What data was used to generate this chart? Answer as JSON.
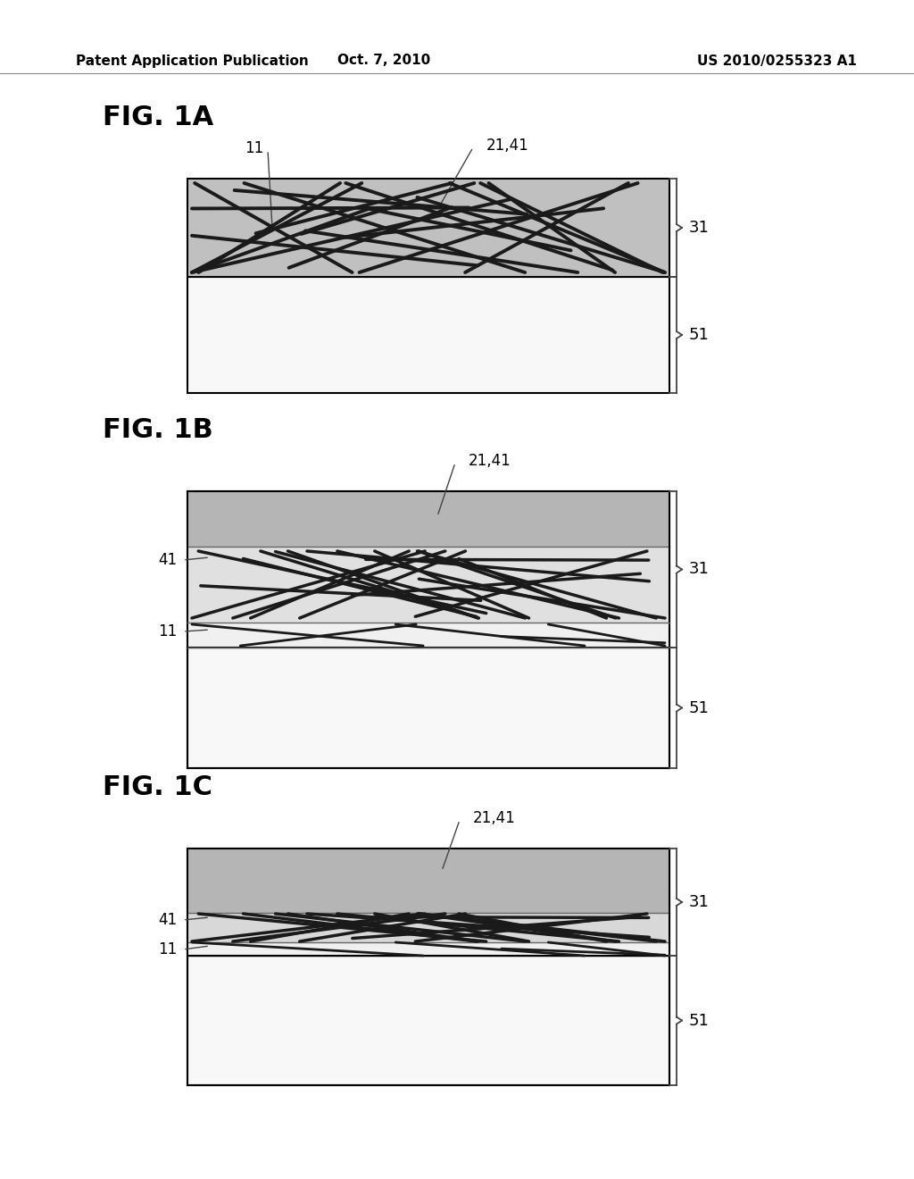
{
  "header_left": "Patent Application Publication",
  "header_center": "Oct. 7, 2010",
  "header_right": "US 2010/0255323 A1",
  "bg_color": "#ffffff",
  "fig_labels": [
    "FIG. 1A",
    "FIG. 1B",
    "FIG. 1C"
  ],
  "layer_gray_light": "#c8c8c8",
  "layer_gray_medium": "#b0b0b0",
  "layer_white": "#ffffff",
  "fiber_color": "#1a1a1a",
  "border_color": "#000000",
  "text_color": "#000000",
  "bracket_color": "#555555"
}
